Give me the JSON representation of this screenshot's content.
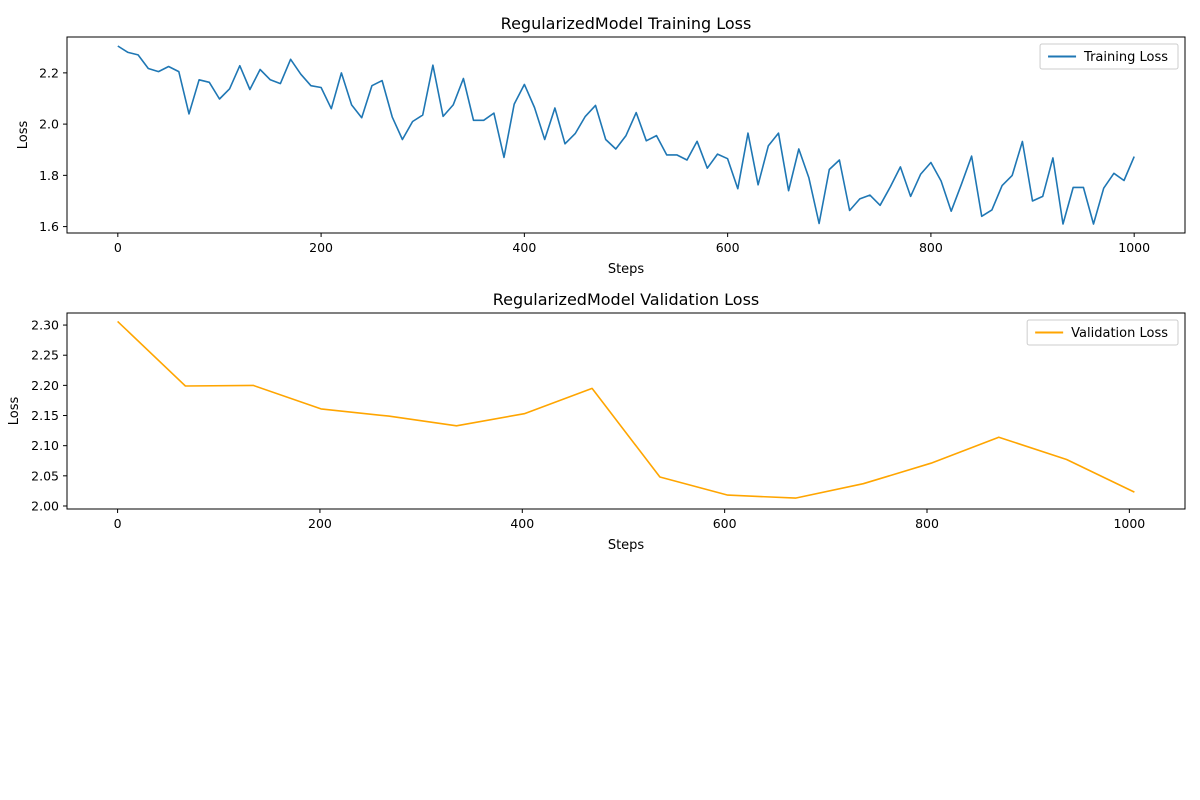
{
  "chart_data": [
    {
      "type": "line",
      "title": "RegularizedModel Training Loss",
      "xlabel": "Steps",
      "ylabel": "Loss",
      "xlim": [
        -50,
        1050
      ],
      "ylim": [
        1.575,
        2.34
      ],
      "xticks": [
        0,
        200,
        400,
        600,
        800,
        1000
      ],
      "yticks": [
        1.6,
        1.8,
        2.0,
        2.2
      ],
      "ytick_labels": [
        "1.6",
        "1.8",
        "2.0",
        "2.2"
      ],
      "grid": false,
      "legend_position": "top-right",
      "series": [
        {
          "name": "Training Loss",
          "color": "#1f77b4",
          "x": [
            0,
            10,
            20,
            30,
            40,
            50,
            60,
            70,
            80,
            90,
            100,
            110,
            120,
            130,
            140,
            150,
            160,
            170,
            180,
            190,
            200,
            210,
            220,
            230,
            240,
            250,
            260,
            270,
            280,
            290,
            300,
            310,
            320,
            330,
            340,
            350,
            360,
            370,
            380,
            390,
            400,
            410,
            420,
            430,
            440,
            450,
            460,
            470,
            480,
            490,
            500,
            510,
            520,
            530,
            540,
            550,
            560,
            570,
            580,
            590,
            600,
            610,
            620,
            630,
            640,
            650,
            660,
            670,
            680,
            690,
            700,
            710,
            720,
            730,
            740,
            750,
            760,
            770,
            780,
            790,
            800,
            810,
            820,
            830,
            840,
            850,
            860,
            870,
            880,
            890,
            900,
            910,
            920,
            930,
            940,
            950,
            960,
            970,
            980,
            990,
            1000
          ],
          "values": [
            2.305,
            2.28,
            2.27,
            2.217,
            2.205,
            2.225,
            2.205,
            2.04,
            2.173,
            2.163,
            2.098,
            2.138,
            2.228,
            2.135,
            2.213,
            2.173,
            2.158,
            2.253,
            2.195,
            2.15,
            2.143,
            2.06,
            2.2,
            2.075,
            2.025,
            2.15,
            2.17,
            2.028,
            1.94,
            2.01,
            2.035,
            2.23,
            2.03,
            2.075,
            2.178,
            2.015,
            2.015,
            2.043,
            1.87,
            2.078,
            2.155,
            2.065,
            1.94,
            2.063,
            1.923,
            1.963,
            2.03,
            2.073,
            1.94,
            1.903,
            1.955,
            2.045,
            1.935,
            1.955,
            1.88,
            1.88,
            1.86,
            1.933,
            1.828,
            1.883,
            1.865,
            1.748,
            1.965,
            1.763,
            1.915,
            1.965,
            1.74,
            1.903,
            1.79,
            1.612,
            1.823,
            1.86,
            1.663,
            1.708,
            1.723,
            1.683,
            1.755,
            1.833,
            1.718,
            1.805,
            1.85,
            1.778,
            1.66,
            1.765,
            1.875,
            1.64,
            1.665,
            1.76,
            1.8,
            1.932,
            1.7,
            1.718,
            1.868,
            1.61,
            1.753,
            1.753,
            1.61,
            1.75,
            1.808,
            1.78,
            1.873
          ]
        }
      ]
    },
    {
      "type": "line",
      "title": "RegularizedModel Validation Loss",
      "xlabel": "Steps",
      "ylabel": "Loss",
      "xlim": [
        -50,
        1055
      ],
      "ylim": [
        1.995,
        2.32
      ],
      "xticks": [
        0,
        200,
        400,
        600,
        800,
        1000
      ],
      "yticks": [
        2.0,
        2.05,
        2.1,
        2.15,
        2.2,
        2.25,
        2.3
      ],
      "ytick_labels": [
        "2.00",
        "2.05",
        "2.10",
        "2.15",
        "2.20",
        "2.25",
        "2.30"
      ],
      "grid": false,
      "legend_position": "top-right",
      "series": [
        {
          "name": "Validation Loss",
          "color": "#ffa500",
          "x": [
            0,
            67,
            134,
            201,
            268,
            335,
            402,
            469,
            536,
            603,
            670,
            737,
            804,
            871,
            938,
            1005
          ],
          "values": [
            2.306,
            2.199,
            2.2,
            2.161,
            2.149,
            2.133,
            2.153,
            2.195,
            2.048,
            2.018,
            2.013,
            2.037,
            2.071,
            2.114,
            2.077,
            2.023
          ]
        }
      ]
    }
  ]
}
